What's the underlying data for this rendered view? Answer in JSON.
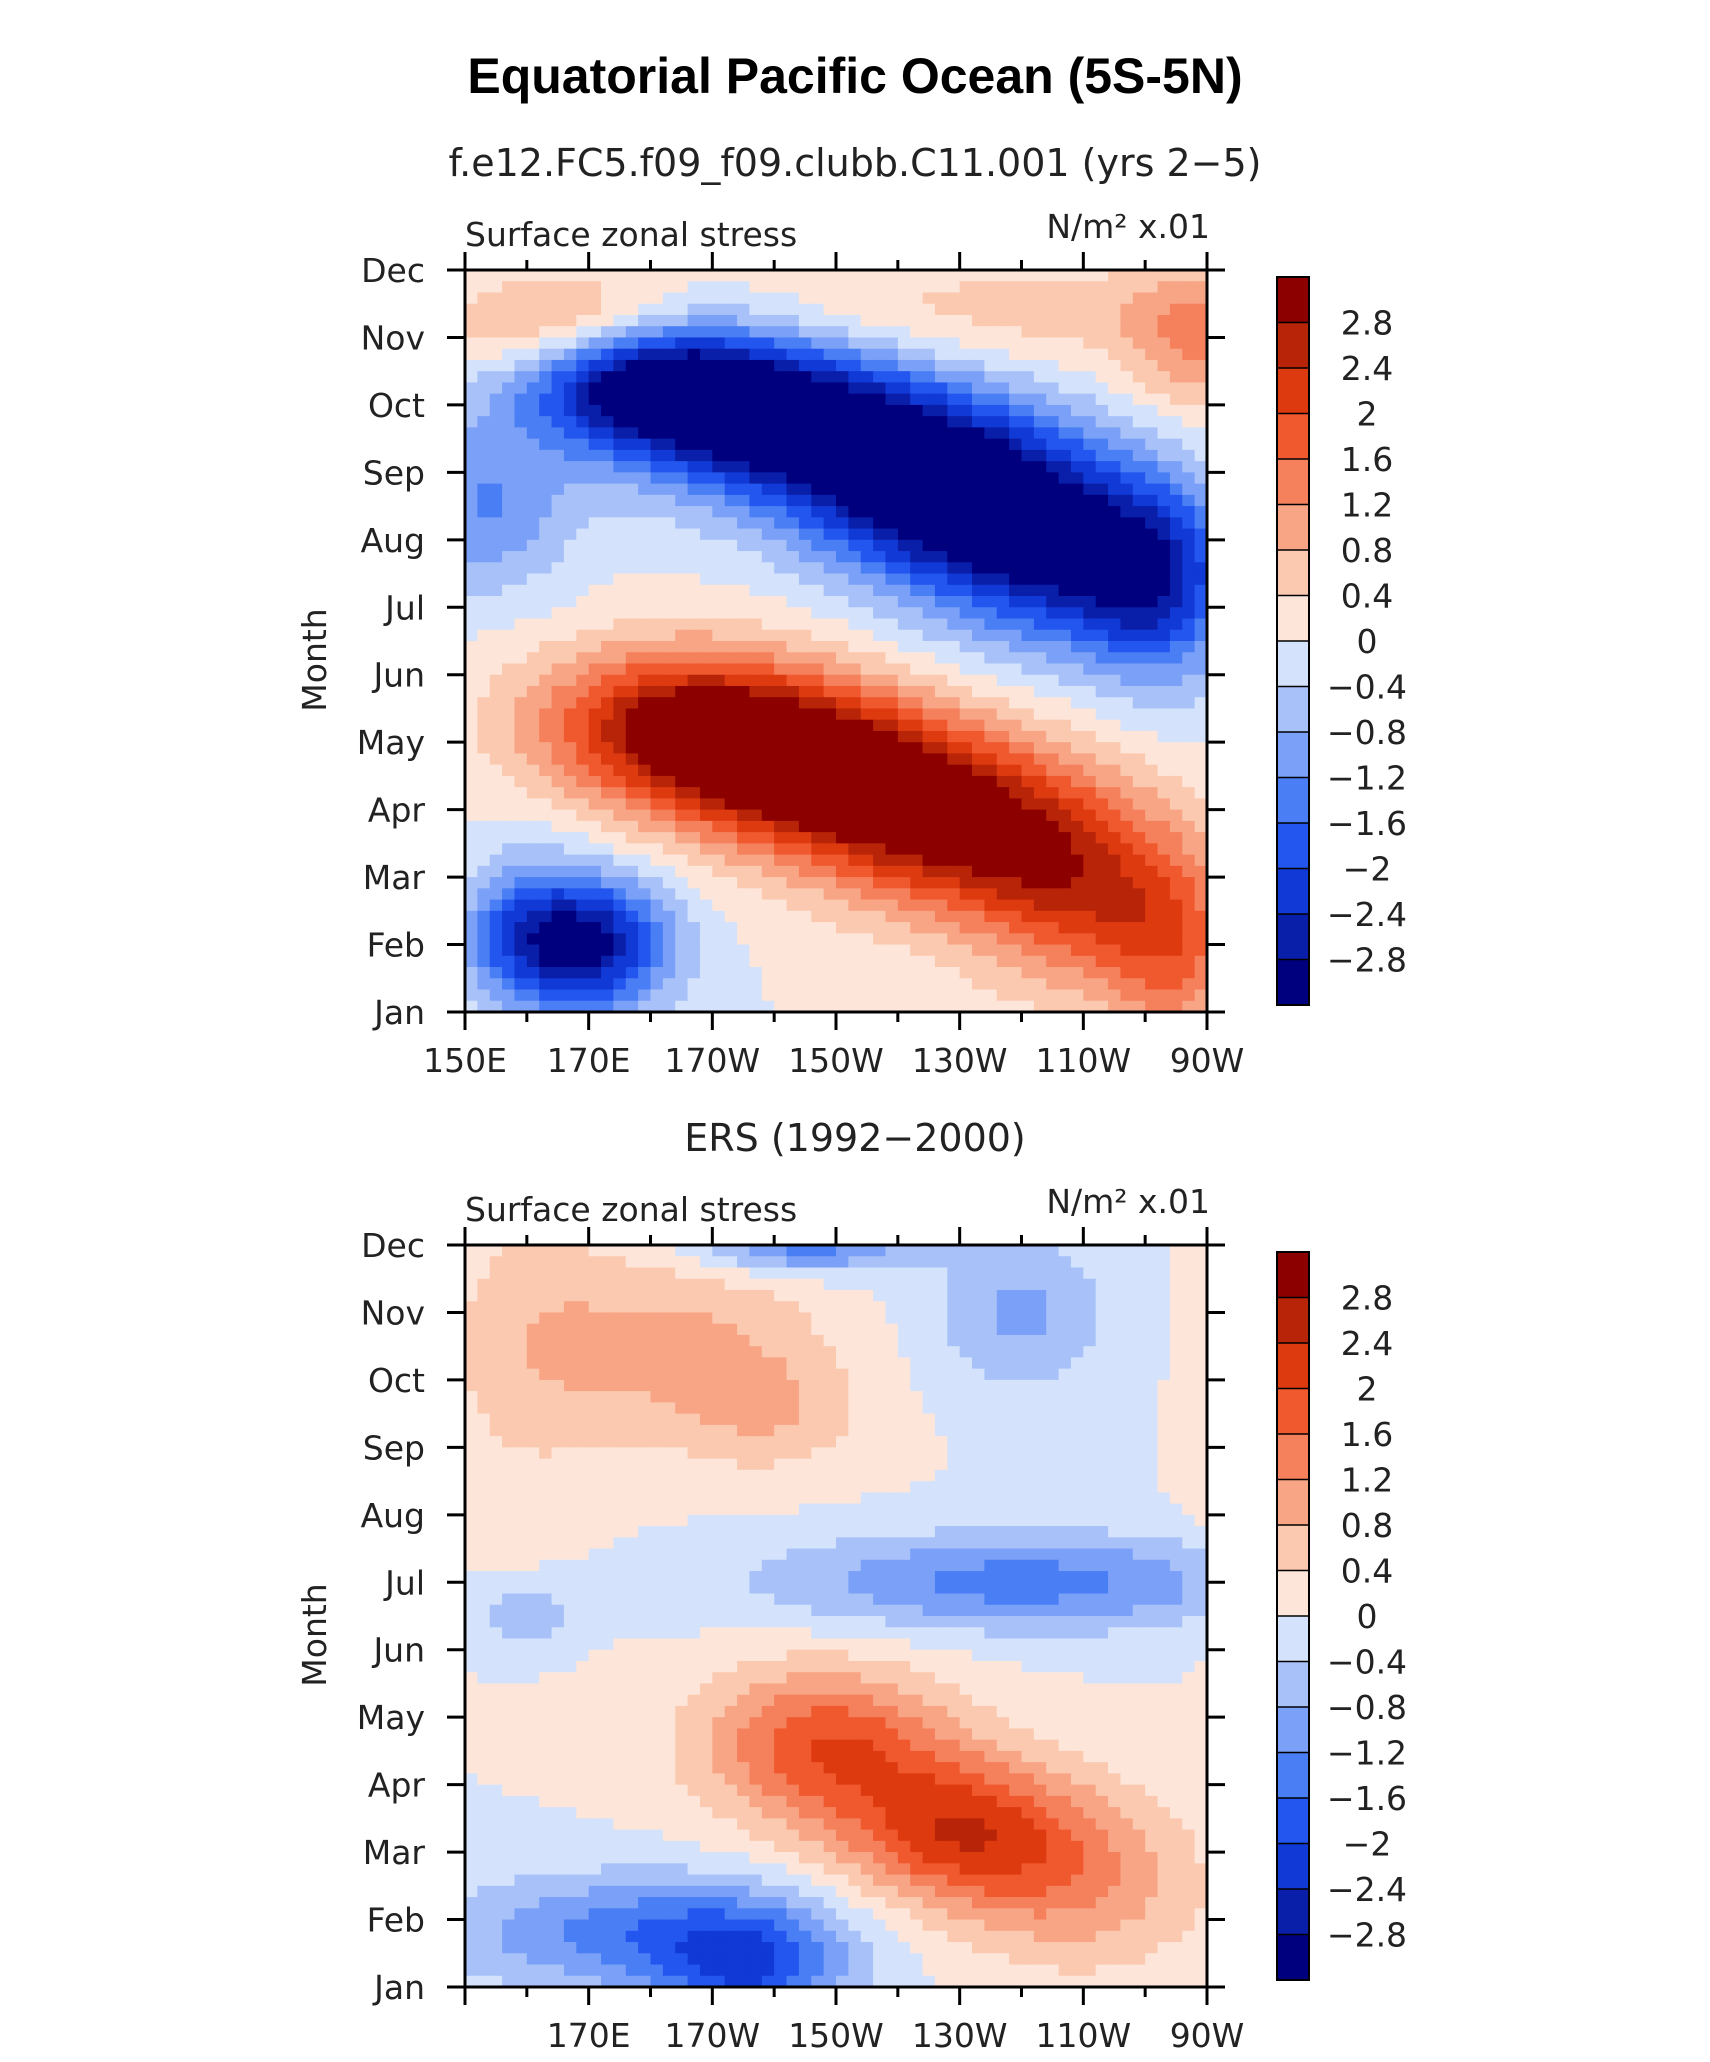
{
  "figure_title": "Equatorial Pacific Ocean (5S-5N)",
  "colors": [
    "#00007f",
    "#0a1fa9",
    "#1139d6",
    "#2356ee",
    "#4a7ef5",
    "#7ba0f7",
    "#a8c2f9",
    "#d4e3fb",
    "#fde6d9",
    "#fbc9b0",
    "#f8a586",
    "#f5805c",
    "#f0582e",
    "#de3a10",
    "#b82408",
    "#8c0000"
  ],
  "colorbar_labels": [
    "2.8",
    "2.4",
    "2",
    "1.6",
    "1.2",
    "0.8",
    "0.4",
    "0",
    "−0.4",
    "−0.8",
    "−1.2",
    "−1.6",
    "−2",
    "−2.4",
    "−2.8"
  ],
  "chart_data": [
    {
      "type": "heatmap",
      "subtitle": "f.e12.FC5.f09_f09.clubb.C11.001 (yrs 2−5)",
      "left_label": "Surface zonal stress",
      "right_label": "N/m² x.01",
      "ylabel": "Month",
      "xtick_labels": [
        "150E",
        "170E",
        "170W",
        "150W",
        "130W",
        "110W",
        "90W"
      ],
      "ytick_labels": [
        "Jan",
        "Feb",
        "Mar",
        "Apr",
        "May",
        "Jun",
        "Jul",
        "Aug",
        "Sep",
        "Oct",
        "Nov",
        "Dec"
      ],
      "x_range_deg_east": [
        150,
        270
      ],
      "contour_levels": [
        -2.8,
        -2.4,
        -2,
        -1.6,
        -1.2,
        -0.8,
        -0.4,
        0,
        0.4,
        0.8,
        1.2,
        1.6,
        2,
        2.4,
        2.8
      ],
      "features": [
        {
          "lon": 178,
          "month": 9.5,
          "amp": -3.3,
          "slon": 14,
          "smon": 0.7
        },
        {
          "lon": 200,
          "month": 8.8,
          "amp": -3.3,
          "slon": 17,
          "smon": 0.8
        },
        {
          "lon": 225,
          "month": 7.8,
          "amp": -3.2,
          "slon": 15,
          "smon": 0.9
        },
        {
          "lon": 245,
          "month": 6.9,
          "amp": -2.6,
          "slon": 14,
          "smon": 1.0
        },
        {
          "lon": 262,
          "month": 6.3,
          "amp": -2.0,
          "slon": 9,
          "smon": 1.0
        },
        {
          "lon": 185,
          "month": 4.3,
          "amp": 2.7,
          "slon": 17,
          "smon": 0.8
        },
        {
          "lon": 205,
          "month": 3.6,
          "amp": 2.9,
          "slon": 17,
          "smon": 0.8
        },
        {
          "lon": 228,
          "month": 2.8,
          "amp": 2.7,
          "slon": 16,
          "smon": 0.9
        },
        {
          "lon": 250,
          "month": 1.8,
          "amp": 2.0,
          "slon": 13,
          "smon": 1.0
        },
        {
          "lon": 265,
          "month": 0.8,
          "amp": 1.3,
          "slon": 8,
          "smon": 1.0
        },
        {
          "lon": 170,
          "month": 1.0,
          "amp": -2.9,
          "slon": 9,
          "smon": 0.7
        },
        {
          "lon": 158,
          "month": 1.3,
          "amp": -1.3,
          "slon": 7,
          "smon": 0.8
        },
        {
          "lon": 170,
          "month": 10.1,
          "amp": 1.9,
          "slon": 14,
          "smon": 0.55
        },
        {
          "lon": 230,
          "month": 10.3,
          "amp": 0.6,
          "slon": 35,
          "smon": 0.6
        },
        {
          "lon": 268,
          "month": 10.0,
          "amp": 1.1,
          "slon": 8,
          "smon": 0.8
        },
        {
          "lon": 153,
          "month": 7.5,
          "amp": -1.2,
          "slon": 10,
          "smon": 0.9
        },
        {
          "lon": 150,
          "month": 2.0,
          "amp": 0.3,
          "slon": 8,
          "smon": 0.5
        }
      ]
    },
    {
      "type": "heatmap",
      "subtitle": "ERS (1992−2000)",
      "left_label": "Surface zonal stress",
      "right_label": "N/m² x.01",
      "ylabel": "Month",
      "xtick_labels": [
        "170E",
        "170W",
        "150W",
        "130W",
        "110W",
        "90W"
      ],
      "ytick_labels": [
        "Jan",
        "Feb",
        "Mar",
        "Apr",
        "May",
        "Jun",
        "Jul",
        "Aug",
        "Sep",
        "Oct",
        "Nov",
        "Dec"
      ],
      "x_range_deg_east": [
        150,
        270
      ],
      "contour_levels": [
        -2.8,
        -2.4,
        -2,
        -1.6,
        -1.2,
        -0.8,
        -0.4,
        0,
        0.4,
        0.8,
        1.2,
        1.6,
        2,
        2.4,
        2.8
      ],
      "features": [
        {
          "lon": 208,
          "month": 3.6,
          "amp": 1.9,
          "slon": 14,
          "smon": 0.8
        },
        {
          "lon": 230,
          "month": 2.3,
          "amp": 2.1,
          "slon": 14,
          "smon": 0.8
        },
        {
          "lon": 250,
          "month": 1.5,
          "amp": 1.0,
          "slon": 14,
          "smon": 0.9
        },
        {
          "lon": 180,
          "month": 0.8,
          "amp": -1.5,
          "slon": 22,
          "smon": 0.6
        },
        {
          "lon": 196,
          "month": 0.2,
          "amp": -1.5,
          "slon": 10,
          "smon": 0.6
        },
        {
          "lon": 240,
          "month": 6.0,
          "amp": -1.4,
          "slon": 28,
          "smon": 0.5
        },
        {
          "lon": 205,
          "month": 11.0,
          "amp": -1.5,
          "slon": 12,
          "smon": 0.3
        },
        {
          "lon": 240,
          "month": 10.0,
          "amp": -0.9,
          "slon": 10,
          "smon": 0.8
        },
        {
          "lon": 185,
          "month": 9.5,
          "amp": 0.9,
          "slon": 16,
          "smon": 1.0
        },
        {
          "lon": 160,
          "month": 9.5,
          "amp": 0.55,
          "slon": 10,
          "smon": 1.5
        },
        {
          "lon": 200,
          "month": 8.5,
          "amp": 0.6,
          "slon": 10,
          "smon": 0.6
        },
        {
          "lon": 160,
          "month": 5.5,
          "amp": -0.7,
          "slon": 5,
          "smon": 0.3
        },
        {
          "lon": 270,
          "month": 9.0,
          "amp": 0.4,
          "slon": 3,
          "smon": 2.0
        }
      ]
    }
  ]
}
